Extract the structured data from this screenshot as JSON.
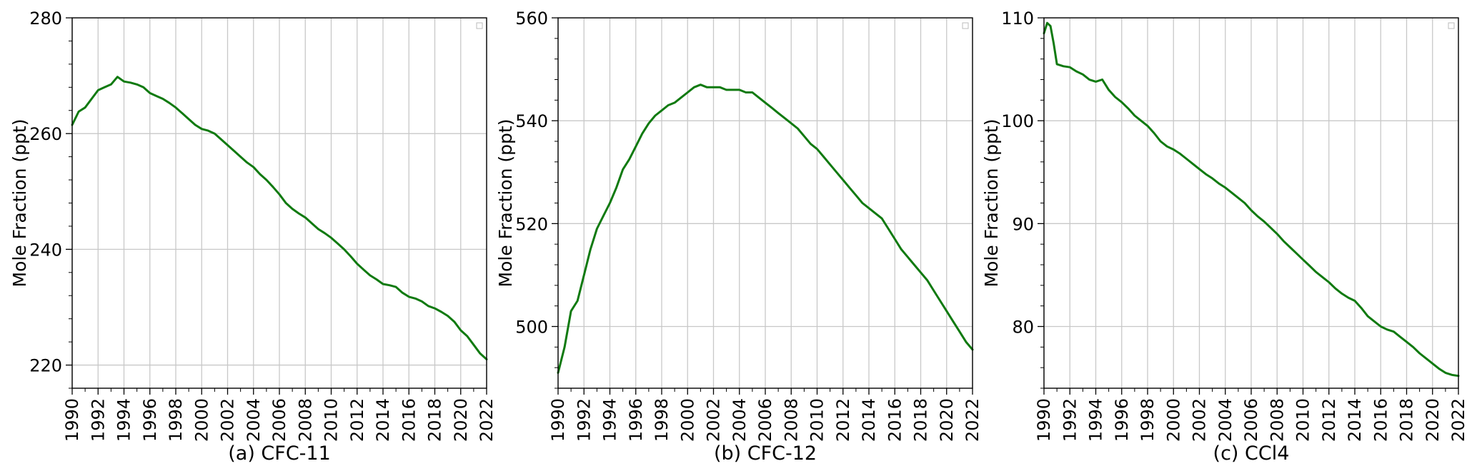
{
  "figure": {
    "line_color": "#107a10",
    "grid_color": "#c8c8c8"
  },
  "chart_data": [
    {
      "type": "line",
      "caption": "(a) CFC-11",
      "xlabel": "",
      "ylabel": "Mole Fraction (ppt)",
      "xlim": [
        1990,
        2022
      ],
      "ylim": [
        216,
        280
      ],
      "yticks": [
        220,
        240,
        260,
        280
      ],
      "xticks": [
        1990,
        1992,
        1994,
        1996,
        1998,
        2000,
        2002,
        2004,
        2006,
        2008,
        2010,
        2012,
        2014,
        2016,
        2018,
        2020,
        2022
      ],
      "grid": true,
      "series": [
        {
          "x": [
            1990.0,
            1990.5,
            1991.0,
            1991.5,
            1992.0,
            1992.5,
            1993.0,
            1993.5,
            1994.0,
            1994.5,
            1995.0,
            1995.5,
            1996.0,
            1996.5,
            1997.0,
            1997.5,
            1998.0,
            1998.5,
            1999.0,
            1999.5,
            2000.0,
            2000.5,
            2001.0,
            2001.5,
            2002.0,
            2002.5,
            2003.0,
            2003.5,
            2004.0,
            2004.5,
            2005.0,
            2005.5,
            2006.0,
            2006.5,
            2007.0,
            2007.5,
            2008.0,
            2008.5,
            2009.0,
            2009.5,
            2010.0,
            2010.5,
            2011.0,
            2011.5,
            2012.0,
            2012.5,
            2013.0,
            2013.5,
            2014.0,
            2014.5,
            2015.0,
            2015.5,
            2016.0,
            2016.5,
            2017.0,
            2017.5,
            2018.0,
            2018.5,
            2019.0,
            2019.5,
            2020.0,
            2020.5,
            2021.0,
            2021.5,
            2022.0
          ],
          "values": [
            261.5,
            263.8,
            264.5,
            266.0,
            267.5,
            268.0,
            268.5,
            269.8,
            269.0,
            268.8,
            268.5,
            268.0,
            267.0,
            266.5,
            266.0,
            265.3,
            264.5,
            263.5,
            262.5,
            261.5,
            260.8,
            260.5,
            260.0,
            259.0,
            258.0,
            257.0,
            256.0,
            255.0,
            254.2,
            253.0,
            252.0,
            250.8,
            249.5,
            248.0,
            247.0,
            246.2,
            245.5,
            244.5,
            243.5,
            242.8,
            242.0,
            241.0,
            240.0,
            238.8,
            237.5,
            236.5,
            235.5,
            234.8,
            234.0,
            233.8,
            233.5,
            232.5,
            231.8,
            231.5,
            231.0,
            230.2,
            229.8,
            229.2,
            228.5,
            227.5,
            226.0,
            225.0,
            223.5,
            222.0,
            221.0
          ]
        }
      ]
    },
    {
      "type": "line",
      "caption": "(b) CFC-12",
      "xlabel": "",
      "ylabel": "Mole Fraction (ppt)",
      "xlim": [
        1990,
        2022
      ],
      "ylim": [
        488,
        560
      ],
      "yticks": [
        500,
        520,
        540,
        560
      ],
      "xticks": [
        1990,
        1992,
        1994,
        1996,
        1998,
        2000,
        2002,
        2004,
        2006,
        2008,
        2010,
        2012,
        2014,
        2016,
        2018,
        2020,
        2022
      ],
      "grid": true,
      "series": [
        {
          "x": [
            1990.0,
            1990.5,
            1991.0,
            1991.5,
            1992.0,
            1992.5,
            1993.0,
            1993.5,
            1994.0,
            1994.5,
            1995.0,
            1995.5,
            1996.0,
            1996.5,
            1997.0,
            1997.5,
            1998.0,
            1998.5,
            1999.0,
            1999.5,
            2000.0,
            2000.5,
            2001.0,
            2001.5,
            2002.0,
            2002.5,
            2003.0,
            2003.5,
            2004.0,
            2004.5,
            2005.0,
            2005.5,
            2006.0,
            2006.5,
            2007.0,
            2007.5,
            2008.0,
            2008.5,
            2009.0,
            2009.5,
            2010.0,
            2010.5,
            2011.0,
            2011.5,
            2012.0,
            2012.5,
            2013.0,
            2013.5,
            2014.0,
            2014.5,
            2015.0,
            2015.5,
            2016.0,
            2016.5,
            2017.0,
            2017.5,
            2018.0,
            2018.5,
            2019.0,
            2019.5,
            2020.0,
            2020.5,
            2021.0,
            2021.5,
            2022.0
          ],
          "values": [
            491.0,
            496.0,
            503.0,
            505.0,
            510.0,
            515.0,
            519.0,
            521.5,
            524.0,
            527.0,
            530.5,
            532.5,
            535.0,
            537.5,
            539.5,
            541.0,
            542.0,
            543.0,
            543.5,
            544.5,
            545.5,
            546.5,
            547.0,
            546.5,
            546.5,
            546.5,
            546.0,
            546.0,
            546.0,
            545.5,
            545.5,
            544.5,
            543.5,
            542.5,
            541.5,
            540.5,
            539.5,
            538.5,
            537.0,
            535.5,
            534.5,
            533.0,
            531.5,
            530.0,
            528.5,
            527.0,
            525.5,
            524.0,
            523.0,
            522.0,
            521.0,
            519.0,
            517.0,
            515.0,
            513.5,
            512.0,
            510.5,
            509.0,
            507.0,
            505.0,
            503.0,
            501.0,
            499.0,
            497.0,
            495.5
          ]
        }
      ]
    },
    {
      "type": "line",
      "caption": "(c) CCl4",
      "xlabel": "",
      "ylabel": "Mole Fraction (ppt)",
      "xlim": [
        1990,
        2022
      ],
      "ylim": [
        74,
        110
      ],
      "yticks": [
        80,
        90,
        100,
        110
      ],
      "xticks": [
        1990,
        1992,
        1994,
        1996,
        1998,
        2000,
        2002,
        2004,
        2006,
        2008,
        2010,
        2012,
        2014,
        2016,
        2018,
        2020,
        2022
      ],
      "grid": true,
      "series": [
        {
          "x": [
            1990.0,
            1990.25,
            1990.5,
            1990.75,
            1991.0,
            1991.5,
            1992.0,
            1992.5,
            1993.0,
            1993.5,
            1994.0,
            1994.5,
            1995.0,
            1995.5,
            1996.0,
            1996.5,
            1997.0,
            1997.5,
            1998.0,
            1998.5,
            1999.0,
            1999.5,
            2000.0,
            2000.5,
            2001.0,
            2001.5,
            2002.0,
            2002.5,
            2003.0,
            2003.5,
            2004.0,
            2004.5,
            2005.0,
            2005.5,
            2006.0,
            2006.5,
            2007.0,
            2007.5,
            2008.0,
            2008.5,
            2009.0,
            2009.5,
            2010.0,
            2010.5,
            2011.0,
            2011.5,
            2012.0,
            2012.5,
            2013.0,
            2013.5,
            2014.0,
            2014.5,
            2015.0,
            2015.5,
            2016.0,
            2016.5,
            2017.0,
            2017.5,
            2018.0,
            2018.5,
            2019.0,
            2019.5,
            2020.0,
            2020.5,
            2021.0,
            2021.5,
            2022.0
          ],
          "values": [
            108.5,
            109.5,
            109.2,
            107.5,
            105.5,
            105.3,
            105.2,
            104.8,
            104.5,
            104.0,
            103.8,
            104.0,
            103.0,
            102.3,
            101.8,
            101.2,
            100.5,
            100.0,
            99.5,
            98.8,
            98.0,
            97.5,
            97.2,
            96.8,
            96.3,
            95.8,
            95.3,
            94.8,
            94.4,
            93.9,
            93.5,
            93.0,
            92.5,
            92.0,
            91.3,
            90.7,
            90.2,
            89.6,
            89.0,
            88.3,
            87.7,
            87.1,
            86.5,
            85.9,
            85.3,
            84.8,
            84.3,
            83.7,
            83.2,
            82.8,
            82.5,
            81.8,
            81.0,
            80.5,
            80.0,
            79.7,
            79.5,
            79.0,
            78.5,
            78.0,
            77.4,
            76.9,
            76.4,
            75.9,
            75.5,
            75.3,
            75.2
          ]
        }
      ]
    }
  ]
}
